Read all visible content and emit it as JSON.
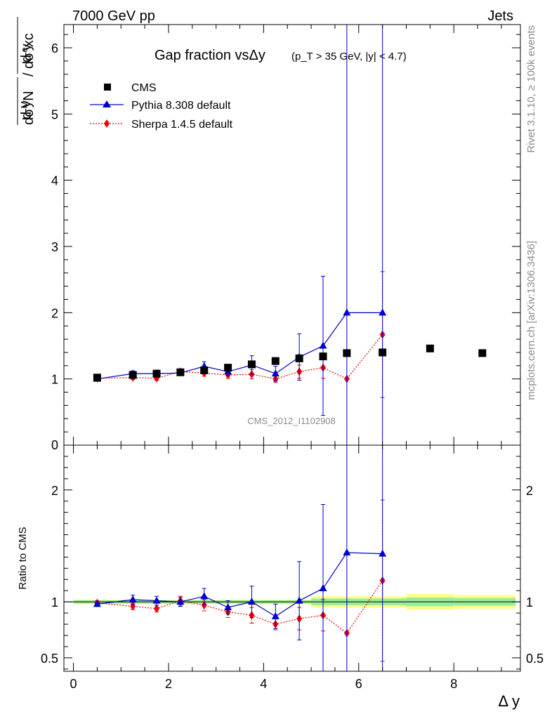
{
  "header": {
    "left": "7000 GeV pp",
    "right": "Jets"
  },
  "side_labels": {
    "rivet": "Rivet 3.1.10, ≥ 100k events",
    "mcplots": "mcplots.cern.ch [arXiv:1306.3436]"
  },
  "title": {
    "main": "Gap fraction vsΔy",
    "cut": "(p_T > 35 GeV, |y| < 4.7)"
  },
  "analysis_id": "CMS_2012_I1102908",
  "colors": {
    "data": "#000000",
    "pythia": "#0000cc",
    "sherpa": "#ee0000",
    "band_inner": "#99ee99",
    "band_outer": "#ffff88",
    "ratio_line": "#008800"
  },
  "chart_data": {
    "type": "line",
    "xlabel": "Δ y",
    "ylabel_main": "dσ^MN / dσ^exc (d y)",
    "ylabel_ratio": "Ratio to CMS",
    "xlim": [
      -0.2,
      9.4
    ],
    "ylim_main": [
      0,
      6.35
    ],
    "ylim_ratio": [
      0.38,
      2.4
    ],
    "x_ticks": [
      0,
      2,
      4,
      6,
      8
    ],
    "y_ticks_main": [
      1,
      2,
      3,
      4,
      5,
      6
    ],
    "y_ticks_ratio": [
      0.5,
      1,
      2
    ],
    "legend": [
      "CMS",
      "Pythia 8.308 default",
      "Sherpa 1.4.5 default"
    ],
    "cms": {
      "x": [
        0.5,
        1.25,
        1.75,
        2.25,
        2.75,
        3.25,
        3.75,
        4.25,
        4.75,
        5.25,
        5.75,
        6.5,
        7.5,
        8.6
      ],
      "y": [
        1.02,
        1.06,
        1.08,
        1.1,
        1.13,
        1.17,
        1.22,
        1.27,
        1.31,
        1.34,
        1.39,
        1.4,
        1.46,
        1.39
      ],
      "band_edges": [
        0.0,
        5.0,
        7.0,
        8.0,
        9.3
      ],
      "band_inner": [
        0.015,
        0.03,
        0.04,
        0.035
      ],
      "band_outer": [
        0.02,
        0.05,
        0.07,
        0.06
      ]
    },
    "pythia": {
      "x": [
        0.5,
        1.25,
        1.75,
        2.25,
        2.75,
        3.25,
        3.75,
        4.25,
        4.75,
        5.25,
        5.75,
        6.5
      ],
      "y": [
        1.0,
        1.08,
        1.08,
        1.09,
        1.19,
        1.11,
        1.21,
        1.08,
        1.33,
        1.5,
        2.0,
        2.0
      ],
      "err": [
        0.02,
        0.04,
        0.04,
        0.04,
        0.07,
        0.06,
        0.14,
        0.11,
        0.35,
        1.05,
        4.8,
        4.8
      ],
      "xerr": [
        0,
        0.5,
        0,
        0.25,
        0.25,
        0.25,
        0.25,
        0.25,
        0.25,
        0.25,
        0.25,
        0.5
      ]
    },
    "sherpa": {
      "x": [
        0.5,
        1.25,
        1.75,
        2.25,
        2.75,
        3.25,
        3.75,
        4.25,
        4.75,
        5.25,
        5.75,
        6.5
      ],
      "y": [
        1.01,
        1.02,
        1.01,
        1.11,
        1.09,
        1.06,
        1.07,
        1.0,
        1.11,
        1.17,
        1.0,
        1.67
      ],
      "err": [
        0.02,
        0.03,
        0.03,
        0.04,
        0.05,
        0.05,
        0.07,
        0.05,
        0.1,
        0.16,
        0.0,
        0.95
      ]
    },
    "ratio_pythia": {
      "y": [
        0.98,
        1.02,
        1.01,
        1.0,
        1.05,
        0.95,
        1.0,
        0.87,
        1.01,
        1.12,
        1.44,
        1.43
      ],
      "err": [
        0.02,
        0.04,
        0.04,
        0.04,
        0.07,
        0.06,
        0.14,
        0.11,
        0.35,
        0.75,
        1.1,
        1.1
      ]
    },
    "ratio_sherpa": {
      "y": [
        0.99,
        0.96,
        0.94,
        1.01,
        0.97,
        0.91,
        0.88,
        0.8,
        0.85,
        0.88,
        0.72,
        1.19
      ],
      "err": [
        0.02,
        0.03,
        0.03,
        0.04,
        0.05,
        0.05,
        0.07,
        0.05,
        0.1,
        0.14,
        0.0,
        0.72
      ]
    }
  }
}
